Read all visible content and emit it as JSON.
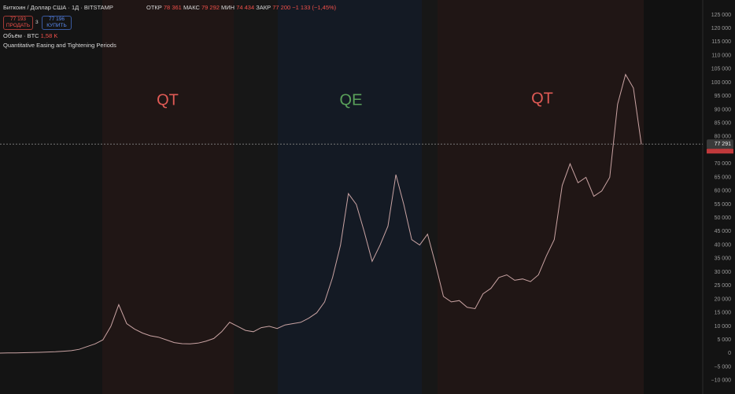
{
  "header": {
    "symbol": "Биткоин / Доллар США · 1Д · BITSTAMP",
    "open_label": "ОТКР",
    "open": "78 361",
    "high_label": "МАКС",
    "high": "79 292",
    "low_label": "МИН",
    "low": "74 434",
    "close_label": "ЗАКР",
    "close": "77 200",
    "change": "−1 133 (−1,45%)",
    "sell_price": "77 193",
    "sell_label": "ПРОДАТЬ",
    "spread": "3",
    "buy_price": "77 196",
    "buy_label": "КУПИТЬ",
    "volume_label": "Объём · BTC",
    "volume": "1,58 K",
    "indicator": "Quantitative Easing and Tightening Periods"
  },
  "chart_data": {
    "type": "line",
    "color": "#c9a3a3",
    "annotations": [
      "QT",
      "QE",
      "QT"
    ],
    "values": [
      100,
      150,
      200,
      250,
      300,
      400,
      500,
      600,
      800,
      1000,
      1500,
      2500,
      3500,
      5000,
      10000,
      18000,
      11000,
      9000,
      7500,
      6500,
      6000,
      5000,
      4000,
      3600,
      3500,
      3800,
      4500,
      5500,
      8000,
      11500,
      10000,
      8500,
      8000,
      9500,
      10000,
      9200,
      10500,
      11000,
      11500,
      13000,
      15000,
      19000,
      28000,
      40000,
      59000,
      55000,
      45000,
      34000,
      40000,
      47000,
      66000,
      55000,
      42000,
      40000,
      44000,
      33000,
      21000,
      19000,
      19500,
      17000,
      16500,
      22000,
      24000,
      28000,
      29000,
      27000,
      27500,
      26500,
      29000,
      36000,
      42000,
      62000,
      70000,
      63000,
      65000,
      58000,
      60000,
      65000,
      92000,
      103000,
      98000,
      77200
    ],
    "price_line": {
      "value": 77291,
      "label": "77 291"
    },
    "ylim": [
      -15000,
      130500
    ],
    "yticks": [
      {
        "value": 125000,
        "label": "125 000"
      },
      {
        "value": 120000,
        "label": "120 000"
      },
      {
        "value": 115000,
        "label": "115 000"
      },
      {
        "value": 110000,
        "label": "110 000"
      },
      {
        "value": 105000,
        "label": "105 000"
      },
      {
        "value": 100000,
        "label": "100 000"
      },
      {
        "value": 95000,
        "label": "95 000"
      },
      {
        "value": 90000,
        "label": "90 000"
      },
      {
        "value": 85000,
        "label": "85 000"
      },
      {
        "value": 80000,
        "label": "80 000"
      },
      {
        "value": 75000,
        "label": "75 000"
      },
      {
        "value": 70000,
        "label": "70 000"
      },
      {
        "value": 65000,
        "label": "65 000"
      },
      {
        "value": 60000,
        "label": "60 000"
      },
      {
        "value": 55000,
        "label": "55 000"
      },
      {
        "value": 50000,
        "label": "50 000"
      },
      {
        "value": 45000,
        "label": "45 000"
      },
      {
        "value": 40000,
        "label": "40 000"
      },
      {
        "value": 35000,
        "label": "35 000"
      },
      {
        "value": 30000,
        "label": "30 000"
      },
      {
        "value": 25000,
        "label": "25 000"
      },
      {
        "value": 20000,
        "label": "20 000"
      },
      {
        "value": 15000,
        "label": "15 000"
      },
      {
        "value": 10000,
        "label": "10 000"
      },
      {
        "value": 5000,
        "label": "5 000"
      },
      0,
      {
        "value": -5000,
        "label": "−5 000"
      },
      {
        "value": -10000,
        "label": "−10 000"
      }
    ]
  }
}
